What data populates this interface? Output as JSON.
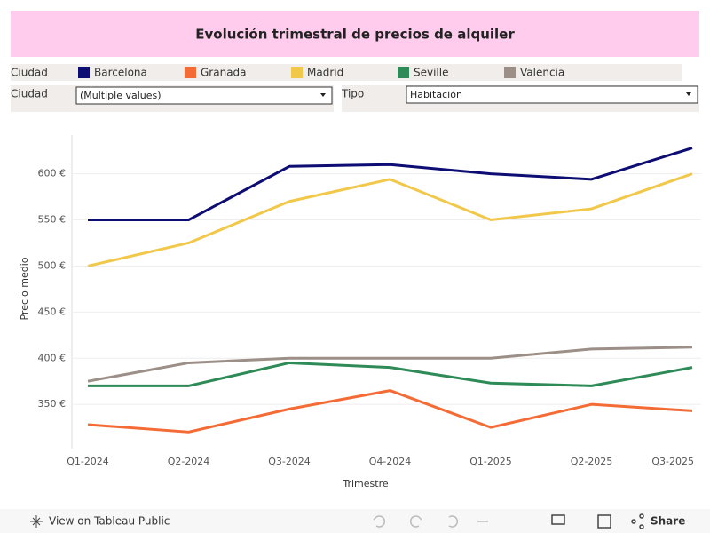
{
  "chart_data": {
    "type": "line",
    "title": "Evolución trimestral de precios de alquiler",
    "legend_title": "Ciudad",
    "x_label": "Trimestre",
    "y_label": "Precio medio",
    "categories": [
      "Q1-2024",
      "Q2-2024",
      "Q3-2024",
      "Q4-2024",
      "Q1-2025",
      "Q2-2025",
      "Q3-2025"
    ],
    "series": [
      {
        "name": "Barcelona",
        "color": "#0d0d73",
        "values": [
          550,
          550,
          608,
          610,
          600,
          594,
          628
        ]
      },
      {
        "name": "Granada",
        "color": "#f56b36",
        "values": [
          328,
          320,
          345,
          365,
          325,
          350,
          343
        ]
      },
      {
        "name": "Madrid",
        "color": "#f2c84b",
        "values": [
          500,
          525,
          570,
          594,
          550,
          562,
          600
        ]
      },
      {
        "name": "Seville",
        "color": "#2e8b57",
        "values": [
          370,
          370,
          395,
          390,
          373,
          370,
          390
        ]
      },
      {
        "name": "Valencia",
        "color": "#9c8f88",
        "values": [
          375,
          395,
          400,
          400,
          400,
          410,
          412
        ]
      }
    ],
    "ylim": [
      302,
      642
    ],
    "yticks": [
      {
        "value": 350,
        "label": "350 €"
      },
      {
        "value": 400,
        "label": "400 €"
      },
      {
        "value": 450,
        "label": "450 €"
      },
      {
        "value": 500,
        "label": "500 €"
      },
      {
        "value": 550,
        "label": "550 €"
      },
      {
        "value": 600,
        "label": "600 €"
      }
    ],
    "grid": true
  },
  "filters": [
    {
      "label": "Ciudad",
      "value": "(Multiple values)"
    },
    {
      "label": "Tipo",
      "value": "Habitación"
    }
  ],
  "footer": {
    "link": "View on Tableau Public",
    "share": "Share"
  }
}
